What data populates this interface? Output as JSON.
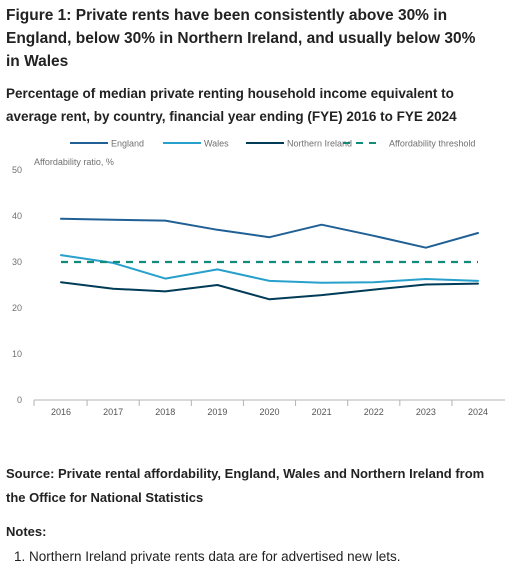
{
  "figure": {
    "title": "Figure 1: Private rents have been consistently above 30% in England, below 30% in Northern Ireland, and usually below 30% in Wales",
    "subtitle": "Percentage of median private renting household income equivalent to average rent, by country, financial year ending (FYE) 2016 to FYE 2024"
  },
  "source": "Source: Private rental affordability, England, Wales and Northern Ireland from the Office for National Statistics",
  "notes": {
    "heading": "Notes:",
    "items": [
      "1. Northern Ireland private rents data are for advertised new lets."
    ]
  },
  "chart_data": {
    "type": "line",
    "title": "",
    "xlabel": "",
    "ylabel": "Affordability ratio, %",
    "x": [
      "2016",
      "2017",
      "2018",
      "2019",
      "2020",
      "2021",
      "2022",
      "2023",
      "2024"
    ],
    "ylim": [
      0,
      50
    ],
    "yticks": [
      "0",
      "10",
      "20",
      "30",
      "40",
      "50"
    ],
    "grid": false,
    "legend_position": "top",
    "series": [
      {
        "name": "England",
        "color": "#206095",
        "dashed": false,
        "values": [
          39.4,
          39.2,
          39.0,
          37.0,
          35.4,
          38.1,
          35.7,
          33.1,
          36.3
        ]
      },
      {
        "name": "Wales",
        "color": "#27a0cc",
        "dashed": false,
        "values": [
          31.5,
          29.8,
          26.4,
          28.4,
          25.9,
          25.5,
          25.6,
          26.3,
          25.9
        ]
      },
      {
        "name": "Northern Ireland",
        "color": "#003c57",
        "dashed": false,
        "values": [
          25.6,
          24.2,
          23.6,
          25.0,
          21.9,
          22.8,
          24.0,
          25.1,
          25.3
        ]
      },
      {
        "name": "Affordability threshold",
        "color": "#118c7b",
        "dashed": true,
        "values": [
          30,
          30,
          30,
          30,
          30,
          30,
          30,
          30,
          30
        ]
      }
    ]
  }
}
